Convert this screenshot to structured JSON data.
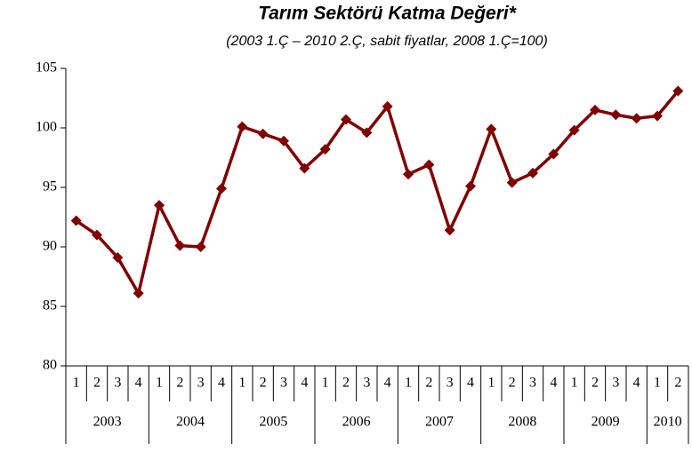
{
  "chart_data": {
    "type": "line",
    "title": "Tarım Sektörü Katma Değeri*",
    "subtitle": "(2003 1.Ç – 2010 2.Ç, sabit fiyatlar, 2008 1.Ç=100)",
    "categories": [
      "1",
      "2",
      "3",
      "4",
      "1",
      "2",
      "3",
      "4",
      "1",
      "2",
      "3",
      "4",
      "1",
      "2",
      "3",
      "4",
      "1",
      "2",
      "3",
      "4",
      "1",
      "2",
      "3",
      "4",
      "1",
      "2",
      "3",
      "4",
      "1",
      "2"
    ],
    "category_groups": [
      "2003",
      "2004",
      "2005",
      "2006",
      "2007",
      "2008",
      "2009",
      "2010"
    ],
    "series": [
      {
        "name": "Tarım Sektörü Katma Değeri",
        "color": "#800000",
        "values": [
          92.2,
          91.0,
          89.1,
          86.1,
          93.5,
          90.1,
          90.0,
          94.9,
          100.1,
          99.5,
          98.9,
          96.6,
          98.2,
          100.7,
          99.6,
          101.8,
          96.1,
          96.9,
          91.4,
          95.1,
          99.9,
          95.4,
          96.2,
          97.8,
          99.8,
          101.5,
          101.1,
          100.8,
          101.0,
          103.1
        ]
      }
    ],
    "ylim": [
      80,
      105
    ],
    "yticks": [
      80,
      85,
      90,
      95,
      100,
      105
    ],
    "grid": false
  }
}
